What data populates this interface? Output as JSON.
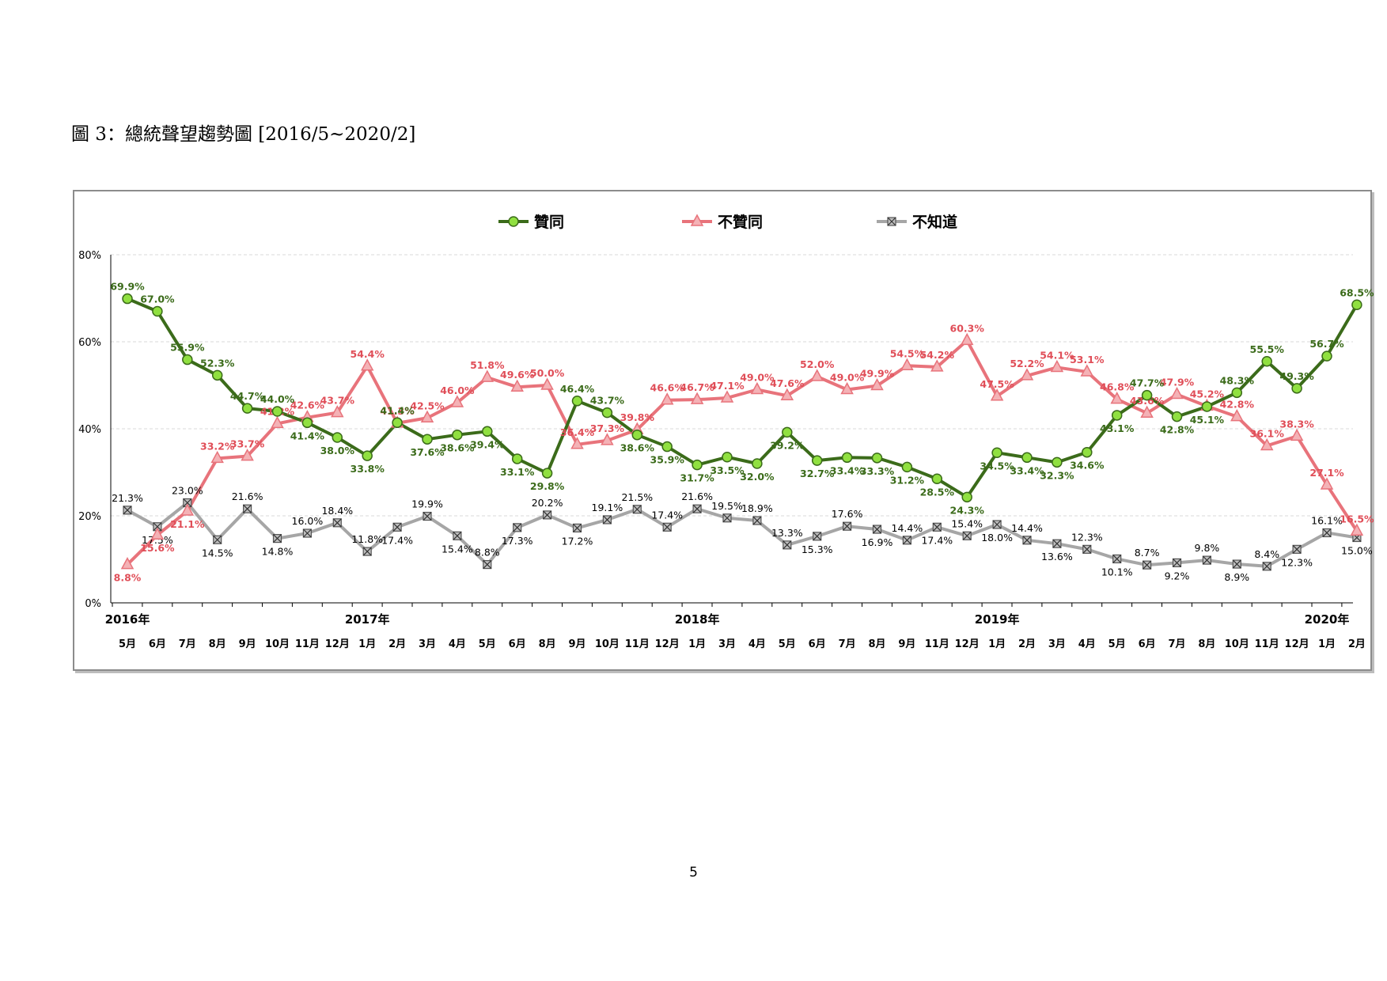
{
  "caption": "圖 3：總統聲望趨勢圖 [2016/5~2020/2]",
  "page_number": "5",
  "chart_data": {
    "type": "line",
    "title": "",
    "ylim": [
      0,
      80
    ],
    "yticks": [
      "0%",
      "20%",
      "40%",
      "60%",
      "80%"
    ],
    "grid": true,
    "legend_position": "top-center",
    "categories": [
      "5月",
      "6月",
      "7月",
      "8月",
      "9月",
      "10月",
      "11月",
      "12月",
      "1月",
      "2月",
      "3月",
      "4月",
      "5月",
      "6月",
      "8月",
      "9月",
      "10月",
      "11月",
      "12月",
      "1月",
      "3月",
      "4月",
      "5月",
      "6月",
      "7月",
      "8月",
      "9月",
      "11月",
      "12月",
      "1月",
      "2月",
      "3月",
      "4月",
      "5月",
      "6月",
      "7月",
      "8月",
      "10月",
      "11月",
      "12月",
      "1月",
      "2月"
    ],
    "year_labels": [
      {
        "label": "2016年",
        "index": 0
      },
      {
        "label": "2017年",
        "index": 8
      },
      {
        "label": "2018年",
        "index": 19
      },
      {
        "label": "2019年",
        "index": 29
      },
      {
        "label": "2020年",
        "index": 40
      }
    ],
    "series": [
      {
        "name": "贊同",
        "color": "#3b6b1a",
        "marker": "circle",
        "marker_fill": "#90e040",
        "values": [
          69.9,
          67.0,
          55.9,
          52.3,
          44.7,
          44.0,
          41.4,
          38.0,
          33.8,
          41.4,
          37.6,
          38.6,
          39.4,
          33.1,
          29.8,
          46.4,
          43.7,
          38.6,
          35.9,
          31.7,
          33.5,
          32.0,
          39.2,
          32.7,
          33.4,
          33.3,
          31.2,
          28.5,
          24.3,
          34.5,
          33.4,
          32.3,
          34.6,
          43.1,
          47.7,
          42.8,
          45.1,
          48.3,
          55.5,
          49.3,
          56.7,
          68.5
        ],
        "labels": [
          "69.9%",
          "67.0%",
          "55.9%",
          "52.3%",
          "44.7%",
          "44.0%",
          "41.4%",
          "38.0%",
          "33.8%",
          "41.4%",
          "37.6%",
          "38.6%",
          "39.4%",
          "33.1%",
          "29.8%",
          "46.4%",
          "43.7%",
          "38.6%",
          "35.9%",
          "31.7%",
          "33.5%",
          "32.0%",
          "39.2%",
          "32.7%",
          "33.4%",
          "33.3%",
          "31.2%",
          "28.5%",
          "24.3%",
          "34.5%",
          "33.4%",
          "32.3%",
          "34.6%",
          "43.1%",
          "47.7%",
          "42.8%",
          "45.1%",
          "48.3%",
          "55.5%",
          "49.3%",
          "56.7%",
          "68.5%"
        ]
      },
      {
        "name": "不贊同",
        "color": "#e8737b",
        "marker": "triangle",
        "marker_fill": "#f4b2b6",
        "values": [
          8.8,
          15.6,
          21.1,
          33.2,
          33.7,
          41.2,
          42.6,
          43.7,
          54.4,
          41.3,
          42.5,
          46.0,
          51.8,
          49.6,
          50.0,
          36.4,
          37.3,
          39.8,
          46.6,
          46.7,
          47.1,
          49.0,
          47.6,
          52.0,
          49.0,
          49.9,
          54.5,
          54.2,
          60.3,
          47.5,
          52.2,
          54.1,
          53.1,
          46.8,
          43.6,
          47.9,
          45.2,
          42.8,
          36.1,
          38.3,
          27.1,
          16.5
        ],
        "labels": [
          "8.8%",
          "15.6%",
          "21.1%",
          "33.2%",
          "33.7%",
          "41.2%",
          "42.6%",
          "43.7%",
          "54.4%",
          "41.3%",
          "42.5%",
          "46.0%",
          "51.8%",
          "49.6%",
          "50.0%",
          "36.4%",
          "37.3%",
          "39.8%",
          "46.6%",
          "46.7%",
          "47.1%",
          "49.0%",
          "47.6%",
          "52.0%",
          "49.0%",
          "49.9%",
          "54.5%",
          "54.2%",
          "60.3%",
          "47.5%",
          "52.2%",
          "54.1%",
          "53.1%",
          "46.8%",
          "43.6%",
          "47.9%",
          "45.2%",
          "42.8%",
          "36.1%",
          "38.3%",
          "27.1%",
          "16.5%"
        ]
      },
      {
        "name": "不知道",
        "color": "#a6a6a6",
        "marker": "x-square",
        "marker_fill": "#808080",
        "values": [
          21.3,
          17.5,
          23.0,
          14.5,
          21.6,
          14.8,
          16.0,
          18.4,
          11.8,
          17.4,
          19.9,
          15.4,
          8.8,
          17.3,
          20.2,
          17.2,
          19.1,
          21.5,
          17.4,
          21.6,
          19.5,
          18.9,
          13.3,
          15.3,
          17.6,
          16.9,
          14.4,
          17.4,
          15.4,
          18.0,
          14.4,
          13.6,
          12.3,
          10.1,
          8.7,
          9.2,
          9.8,
          8.9,
          8.4,
          12.3,
          16.1,
          15.0
        ],
        "labels": [
          "21.3%",
          "17.5%",
          "23.0%",
          "14.5%",
          "21.6%",
          "14.8%",
          "16.0%",
          "18.4%",
          "11.8%",
          "17.4%",
          "19.9%",
          "15.4%",
          "8.8%",
          "17.3%",
          "20.2%",
          "17.2%",
          "19.1%",
          "21.5%",
          "17.4%",
          "21.6%",
          "19.5%",
          "18.9%",
          "13.3%",
          "15.3%",
          "17.6%",
          "16.9%",
          "14.4%",
          "17.4%",
          "15.4%",
          "18.0%",
          "14.4%",
          "13.6%",
          "12.3%",
          "10.1%",
          "8.7%",
          "9.2%",
          "9.8%",
          "8.9%",
          "8.4%",
          "12.3%",
          "16.1%",
          "15.0%"
        ]
      }
    ]
  }
}
